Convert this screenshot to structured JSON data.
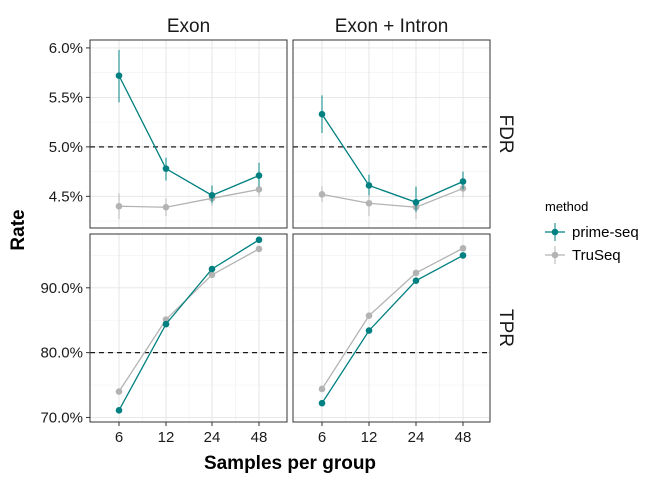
{
  "chart_data": {
    "type": "line",
    "xlabel": "Samples per group",
    "ylabel": "Rate",
    "categories": [
      "6",
      "12",
      "24",
      "48"
    ],
    "facet_columns": [
      "Exon",
      "Exon + Intron"
    ],
    "facet_rows": [
      "FDR",
      "TPR"
    ],
    "legend": {
      "title": "method",
      "placement": "right",
      "entries": [
        {
          "name": "prime-seq",
          "color": "#008080"
        },
        {
          "name": "TruSeq",
          "color": "#b3b3b3"
        }
      ]
    },
    "rows": {
      "FDR": {
        "ylim": [
          4.18,
          6.08
        ],
        "ticks": [
          4.5,
          5.0,
          5.5,
          6.0
        ],
        "tick_labels": [
          "4.5%",
          "5.0%",
          "5.5%",
          "6.0%"
        ],
        "reference_line": 5.0
      },
      "TPR": {
        "ylim": [
          69.3,
          98.3
        ],
        "ticks": [
          70,
          80,
          90
        ],
        "tick_labels": [
          "70.0%",
          "80.0%",
          "90.0%"
        ],
        "reference_line": 80.0
      }
    },
    "panels": [
      {
        "column": "Exon",
        "row": "FDR",
        "series": [
          {
            "name": "prime-seq",
            "values": [
              5.72,
              4.78,
              4.51,
              4.71
            ],
            "err_low": [
              5.45,
              4.66,
              4.43,
              4.6
            ],
            "err_high": [
              5.98,
              4.89,
              4.61,
              4.84
            ]
          },
          {
            "name": "TruSeq",
            "values": [
              4.4,
              4.39,
              4.48,
              4.57
            ],
            "err_low": [
              4.27,
              4.3,
              4.4,
              4.5
            ],
            "err_high": [
              4.53,
              4.48,
              4.56,
              4.64
            ]
          }
        ]
      },
      {
        "column": "Exon + Intron",
        "row": "FDR",
        "series": [
          {
            "name": "prime-seq",
            "values": [
              5.33,
              4.61,
              4.44,
              4.65
            ],
            "err_low": [
              5.14,
              4.51,
              4.34,
              4.57
            ],
            "err_high": [
              5.52,
              4.72,
              4.6,
              4.75
            ]
          },
          {
            "name": "TruSeq",
            "values": [
              4.52,
              4.43,
              4.39,
              4.58
            ],
            "err_low": [
              4.44,
              4.3,
              4.27,
              4.49
            ],
            "err_high": [
              4.6,
              4.55,
              4.48,
              4.66
            ]
          }
        ]
      },
      {
        "column": "Exon",
        "row": "TPR",
        "series": [
          {
            "name": "prime-seq",
            "values": [
              71.1,
              84.4,
              92.9,
              97.4
            ]
          },
          {
            "name": "TruSeq",
            "values": [
              74.0,
              85.1,
              92.0,
              96.0
            ]
          }
        ]
      },
      {
        "column": "Exon + Intron",
        "row": "TPR",
        "series": [
          {
            "name": "prime-seq",
            "values": [
              72.2,
              83.4,
              91.1,
              95.0
            ]
          },
          {
            "name": "TruSeq",
            "values": [
              74.4,
              85.7,
              92.3,
              96.1
            ]
          }
        ]
      }
    ]
  }
}
